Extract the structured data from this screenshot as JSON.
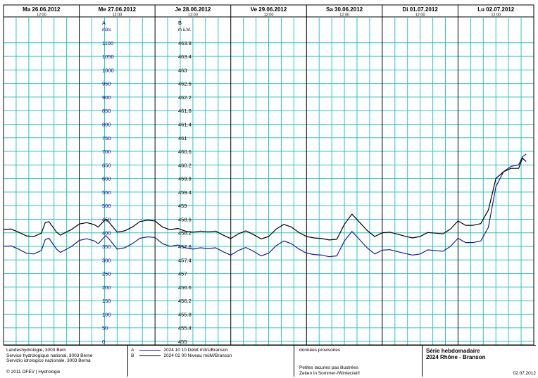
{
  "days": [
    {
      "label": "Ma  26.06.2012",
      "noon": "12:00"
    },
    {
      "label": "Me  27.06.2012",
      "noon": "12:00"
    },
    {
      "label": "Je  28.06.2012",
      "noon": "12:00"
    },
    {
      "label": "Ve  29.06.2012",
      "noon": "12:00"
    },
    {
      "label": "Sa  30.06.2012",
      "noon": "12:00"
    },
    {
      "label": "Di  01.07.2012",
      "noon": "12:00"
    },
    {
      "label": "Lu  02.07.2012",
      "noon": "12:00"
    }
  ],
  "axis_a": {
    "name": "A",
    "unit": "m3/s",
    "ticks": [
      "1100",
      "1050",
      "1000",
      "950",
      "900",
      "850",
      "800",
      "750",
      "700",
      "650",
      "600",
      "550",
      "500",
      "450",
      "400",
      "350",
      "300",
      "250",
      "200",
      "150",
      "100",
      "50",
      "0"
    ]
  },
  "axis_b": {
    "name": "B",
    "unit": "m ü.M.",
    "ticks": [
      "463.8",
      "463.4",
      "463",
      "462.6",
      "462.2",
      "461.8",
      "461.4",
      "461",
      "460.6",
      "460.2",
      "459.8",
      "459.4",
      "459",
      "458.6",
      "458.2",
      "457.8",
      "457.4",
      "457",
      "456.6",
      "456.2",
      "455.8",
      "455.4",
      "455"
    ]
  },
  "colors": {
    "grid": "#2fc4c4",
    "axis_text": "#0000a0",
    "series_a": "#1a1aa8",
    "series_b": "#000000"
  },
  "chart_data": {
    "type": "line",
    "x_unit": "days from 26.06.2012 00:00",
    "x_range": [
      0,
      7
    ],
    "y_left": {
      "label": "A m3/s",
      "range": [
        0,
        1100
      ]
    },
    "y_right": {
      "label": "B m ü.M.",
      "range": [
        455,
        463.8
      ]
    },
    "series": [
      {
        "name": "Débit m3/s/Branson",
        "axis": "A",
        "x": [
          0,
          0.1,
          0.2,
          0.3,
          0.4,
          0.5,
          0.55,
          0.6,
          0.7,
          0.75,
          0.8,
          0.9,
          1,
          1.1,
          1.2,
          1.25,
          1.3,
          1.35,
          1.4,
          1.5,
          1.6,
          1.7,
          1.8,
          1.9,
          2,
          2.1,
          2.2,
          2.3,
          2.4,
          2.5,
          2.6,
          2.7,
          2.8,
          2.9,
          3,
          3.1,
          3.2,
          3.3,
          3.4,
          3.5,
          3.6,
          3.7,
          3.8,
          3.9,
          4,
          4.1,
          4.2,
          4.3,
          4.4,
          4.5,
          4.6,
          4.7,
          4.8,
          4.9,
          5,
          5.1,
          5.2,
          5.3,
          5.4,
          5.5,
          5.6,
          5.7,
          5.8,
          5.9,
          6,
          6.1,
          6.2,
          6.3,
          6.4,
          6.5,
          6.6,
          6.7,
          6.8,
          6.85,
          6.9
        ],
        "y": [
          350,
          352,
          340,
          325,
          322,
          335,
          375,
          380,
          340,
          328,
          335,
          350,
          372,
          378,
          370,
          360,
          375,
          390,
          375,
          340,
          345,
          360,
          380,
          385,
          383,
          360,
          350,
          355,
          345,
          340,
          345,
          342,
          345,
          330,
          318,
          335,
          346,
          332,
          315,
          325,
          353,
          370,
          360,
          340,
          325,
          320,
          318,
          312,
          315,
          370,
          405,
          375,
          345,
          322,
          336,
          338,
          331,
          324,
          318,
          322,
          337,
          335,
          332,
          350,
          380,
          364,
          364,
          370,
          420,
          570,
          625,
          645,
          650,
          680,
          690
        ]
      },
      {
        "name": "Niveau müM/Branson",
        "axis": "B",
        "x": [
          0,
          0.1,
          0.2,
          0.3,
          0.4,
          0.5,
          0.55,
          0.6,
          0.7,
          0.75,
          0.8,
          0.9,
          1,
          1.1,
          1.2,
          1.25,
          1.3,
          1.35,
          1.4,
          1.5,
          1.6,
          1.7,
          1.8,
          1.9,
          2,
          2.1,
          2.2,
          2.3,
          2.4,
          2.5,
          2.6,
          2.7,
          2.8,
          2.9,
          3,
          3.1,
          3.2,
          3.3,
          3.4,
          3.5,
          3.6,
          3.7,
          3.8,
          3.9,
          4,
          4.1,
          4.2,
          4.3,
          4.4,
          4.5,
          4.6,
          4.7,
          4.8,
          4.9,
          5,
          5.1,
          5.2,
          5.3,
          5.4,
          5.5,
          5.6,
          5.7,
          5.8,
          5.9,
          6,
          6.1,
          6.2,
          6.3,
          6.4,
          6.5,
          6.6,
          6.7,
          6.8,
          6.85,
          6.9
        ],
        "y": [
          458.3,
          458.31,
          458.22,
          458.11,
          458.09,
          458.19,
          458.5,
          458.53,
          458.22,
          458.13,
          458.19,
          458.3,
          458.46,
          458.5,
          458.44,
          458.37,
          458.49,
          458.6,
          458.49,
          458.22,
          458.26,
          458.37,
          458.53,
          458.57,
          458.55,
          458.37,
          458.29,
          458.33,
          458.25,
          458.22,
          458.25,
          458.23,
          458.25,
          458.13,
          458.03,
          458.17,
          458.26,
          458.15,
          458.02,
          458.09,
          458.31,
          458.45,
          458.37,
          458.21,
          458.09,
          458.05,
          458.03,
          457.99,
          458.01,
          458.45,
          458.75,
          458.51,
          458.27,
          458.09,
          458.2,
          458.22,
          458.16,
          458.1,
          458.05,
          458.09,
          458.21,
          458.19,
          458.17,
          458.31,
          458.55,
          458.42,
          458.42,
          458.47,
          458.87,
          459.8,
          460.0,
          460.1,
          460.1,
          460.4,
          460.3
        ]
      }
    ]
  },
  "footer": {
    "org_lines": [
      "Landeshydrologie, 3003 Bern",
      "Service hydrologique national, 3003 Berne",
      "Servizio idrologico nazionale, 3003 Berna"
    ],
    "copyright": "© 2011 OFEV | Hydrologie",
    "legend": [
      {
        "letter": "A",
        "text": "2024 10 10  Débit m3/s/Branson"
      },
      {
        "letter": "B",
        "text": "2024 02 00  Niveau müM/Branson"
      }
    ],
    "note_top": "données provisoires",
    "note_bottom": [
      "Petites lacunes pas illustrées",
      "Zeiten in Sommer-/Winterzeit!"
    ],
    "title_lines": [
      "Série hebdomadaire",
      "2024 Rhône - Branson"
    ],
    "date": "02.07.2012"
  }
}
